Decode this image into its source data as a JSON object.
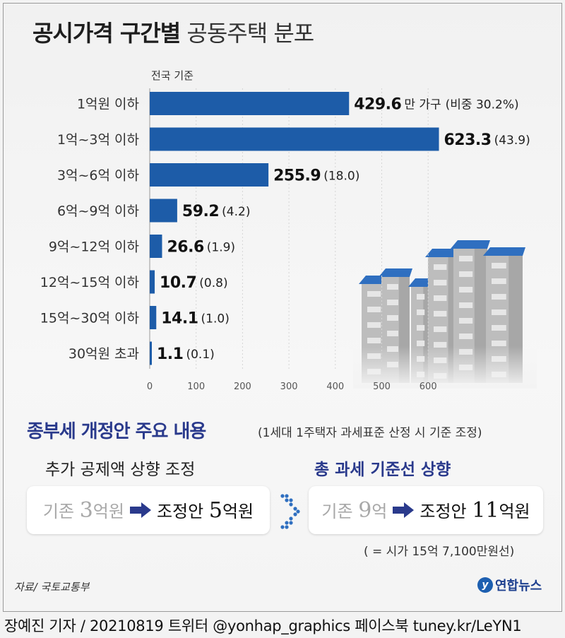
{
  "header": {
    "title_bold": "공시가격 구간별",
    "title_light": "공동주택 분포",
    "basis": "전국 기준"
  },
  "chart_data": {
    "type": "bar",
    "orientation": "horizontal",
    "title": "공시가격 구간별 공동주택 분포",
    "categories": [
      "1억원 이하",
      "1억~3억 이하",
      "3억~6억 이하",
      "6억~9억 이하",
      "9억~12억 이하",
      "12억~15억 이하",
      "15억~30억 이하",
      "30억원 초과"
    ],
    "values": [
      429.6,
      623.3,
      255.9,
      59.2,
      26.6,
      10.7,
      14.1,
      1.1
    ],
    "value_labels": [
      "429.6",
      "623.3",
      "255.9",
      "59.2",
      "26.6",
      "10.7",
      "14.1",
      "1.1"
    ],
    "unit_first": "만 가구",
    "share_labels": [
      "(비중 30.2%)",
      "(43.9)",
      "(18.0)",
      "(4.2)",
      "(1.9)",
      "(0.8)",
      "(1.0)",
      "(0.1)"
    ],
    "xlim": [
      0,
      650
    ],
    "xticks": [
      "0",
      "100",
      "200",
      "300",
      "400",
      "500",
      "600"
    ],
    "bar_color": "#1d5ca8"
  },
  "section": {
    "title": "종부세 개정안 주요 내용",
    "note": "(1세대 1주택자 과세표준 산정 시 기준 조정)",
    "left": {
      "heading": "추가 공제액 상향 조정",
      "old_prefix": "기존",
      "old_num": "3",
      "old_suffix": "억원",
      "new_prefix": "조정안",
      "new_num": "5",
      "new_suffix": "억원"
    },
    "right": {
      "heading": "총 과세 기준선 상향",
      "old_prefix": "기존",
      "old_num": "9",
      "old_suffix": "억",
      "new_prefix": "조정안",
      "new_num": "11",
      "new_suffix": "억원",
      "footnote": "( = 시가 15억 7,100만원선)"
    }
  },
  "footer": {
    "source": "자료/ 국토교통부",
    "logo": "연합뉴스",
    "credit": "장예진 기자 / 20210819 트위터 @yonhap_graphics  페이스북 tuney.kr/LeYN1"
  },
  "colors": {
    "accent": "#2a3a8c",
    "bar": "#1d5ca8"
  }
}
